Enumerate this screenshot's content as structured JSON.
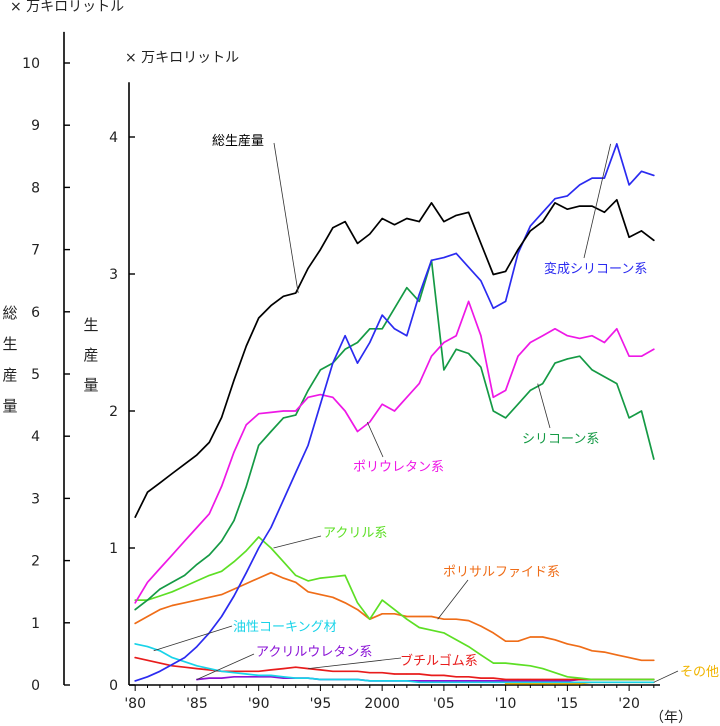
{
  "chart_data": {
    "type": "line",
    "unit_left": "× 万キロリットル",
    "unit_right": "× 万キロリットル",
    "ylabel_left": "総生産量",
    "ylabel_right": "生産量",
    "xlabel": "（年）",
    "x_tick_labels": [
      "'80",
      "'85",
      "'90",
      "'95",
      "2000",
      "'05",
      "'10",
      "'15",
      "'20"
    ],
    "x_ticks": [
      1980,
      1985,
      1990,
      1995,
      2000,
      2005,
      2010,
      2015,
      2020
    ],
    "xlim": [
      1979.5,
      2022.5
    ],
    "ylim_left": [
      0,
      10.5
    ],
    "ylim_right": [
      0,
      4.4
    ],
    "yticks_left": [
      0,
      1,
      2,
      3,
      4,
      5,
      6,
      7,
      8,
      9,
      10
    ],
    "yticks_right": [
      0,
      1,
      2,
      3,
      4
    ],
    "x": [
      1980,
      1981,
      1982,
      1983,
      1984,
      1985,
      1986,
      1987,
      1988,
      1989,
      1990,
      1991,
      1992,
      1993,
      1994,
      1995,
      1996,
      1997,
      1998,
      1999,
      2000,
      2001,
      2002,
      2003,
      2004,
      2005,
      2006,
      2007,
      2008,
      2009,
      2010,
      2011,
      2012,
      2013,
      2014,
      2015,
      2016,
      2017,
      2018,
      2019,
      2020,
      2021,
      2022
    ],
    "series": [
      {
        "name": "総生産量",
        "axis": "left",
        "color": "#000000",
        "label_color": "#000000",
        "values": [
          2.7,
          3.1,
          3.25,
          3.4,
          3.55,
          3.7,
          3.9,
          4.3,
          4.9,
          5.45,
          5.9,
          6.1,
          6.25,
          6.3,
          6.7,
          7.0,
          7.35,
          7.45,
          7.1,
          7.25,
          7.5,
          7.4,
          7.5,
          7.45,
          7.75,
          7.45,
          7.55,
          7.6,
          7.1,
          6.6,
          6.65,
          7.0,
          7.3,
          7.45,
          7.75,
          7.65,
          7.7,
          7.7,
          7.6,
          7.8,
          7.2,
          7.3,
          7.15
        ]
      },
      {
        "name": "変成シリコーン系",
        "axis": "right",
        "color": "#2b2bf0",
        "label_color": "#2b2bf0",
        "values": [
          0.03,
          0.06,
          0.1,
          0.15,
          0.2,
          0.28,
          0.38,
          0.5,
          0.65,
          0.82,
          1.0,
          1.15,
          1.35,
          1.55,
          1.75,
          2.05,
          2.35,
          2.55,
          2.35,
          2.5,
          2.7,
          2.6,
          2.55,
          2.85,
          3.1,
          3.12,
          3.15,
          3.05,
          2.95,
          2.75,
          2.8,
          3.15,
          3.35,
          3.45,
          3.55,
          3.57,
          3.65,
          3.7,
          3.7,
          3.95,
          3.65,
          3.75,
          3.72
        ]
      },
      {
        "name": "ポリウレタン系",
        "axis": "right",
        "color": "#ee18e6",
        "label_color": "#ee18e6",
        "values": [
          0.6,
          0.75,
          0.85,
          0.95,
          1.05,
          1.15,
          1.25,
          1.45,
          1.7,
          1.9,
          1.98,
          1.99,
          2.0,
          2.0,
          2.1,
          2.12,
          2.1,
          2.0,
          1.85,
          1.92,
          2.05,
          2.0,
          2.1,
          2.2,
          2.4,
          2.5,
          2.55,
          2.8,
          2.55,
          2.1,
          2.15,
          2.4,
          2.5,
          2.55,
          2.6,
          2.55,
          2.53,
          2.55,
          2.5,
          2.6,
          2.4,
          2.4,
          2.45
        ]
      },
      {
        "name": "シリコーン系",
        "axis": "right",
        "color": "#159a45",
        "label_color": "#159a45",
        "values": [
          0.55,
          0.62,
          0.7,
          0.75,
          0.8,
          0.88,
          0.95,
          1.05,
          1.2,
          1.45,
          1.75,
          1.85,
          1.95,
          1.97,
          2.15,
          2.3,
          2.35,
          2.45,
          2.5,
          2.6,
          2.6,
          2.75,
          2.9,
          2.8,
          3.1,
          2.3,
          2.45,
          2.42,
          2.32,
          2.0,
          1.95,
          2.05,
          2.15,
          2.2,
          2.35,
          2.38,
          2.4,
          2.3,
          2.25,
          2.2,
          1.95,
          2.0,
          1.65
        ]
      },
      {
        "name": "アクリル系",
        "axis": "right",
        "color": "#5ddf25",
        "label_color": "#5ddf25",
        "values": [
          0.62,
          0.62,
          0.65,
          0.68,
          0.72,
          0.76,
          0.8,
          0.83,
          0.9,
          0.98,
          1.08,
          1.0,
          0.9,
          0.8,
          0.76,
          0.78,
          0.79,
          0.8,
          0.6,
          0.48,
          0.62,
          0.55,
          0.48,
          0.42,
          0.4,
          0.38,
          0.33,
          0.28,
          0.22,
          0.16,
          0.16,
          0.15,
          0.14,
          0.12,
          0.09,
          0.06,
          0.05,
          0.04,
          0.04,
          0.04,
          0.04,
          0.04,
          0.04
        ]
      },
      {
        "name": "ポリサルファイド系",
        "axis": "right",
        "color": "#ef6d18",
        "label_color": "#ef6d18",
        "values": [
          0.45,
          0.5,
          0.55,
          0.58,
          0.6,
          0.62,
          0.64,
          0.66,
          0.7,
          0.74,
          0.78,
          0.82,
          0.78,
          0.75,
          0.68,
          0.66,
          0.64,
          0.6,
          0.55,
          0.48,
          0.52,
          0.52,
          0.5,
          0.5,
          0.5,
          0.48,
          0.48,
          0.47,
          0.43,
          0.38,
          0.32,
          0.32,
          0.35,
          0.35,
          0.33,
          0.3,
          0.28,
          0.25,
          0.24,
          0.22,
          0.2,
          0.18,
          0.18
        ]
      },
      {
        "name": "油性コーキング材",
        "axis": "right",
        "color": "#19d3e8",
        "label_color": "#19d3e8",
        "values": [
          0.3,
          0.28,
          0.25,
          0.2,
          0.17,
          0.14,
          0.12,
          0.1,
          0.09,
          0.08,
          0.07,
          0.07,
          0.06,
          0.05,
          0.05,
          0.04,
          0.04,
          0.04,
          0.04,
          0.03,
          0.03,
          0.03,
          0.03,
          0.02,
          0.02,
          0.02,
          0.02,
          0.02,
          0.02,
          0.02,
          0.02,
          0.02,
          0.02,
          0.02,
          0.02,
          0.02,
          0.02,
          0.02,
          0.02,
          0.02,
          0.02,
          0.02,
          0.02
        ]
      },
      {
        "name": "ブチルゴム系",
        "axis": "right",
        "color": "#e81c1c",
        "label_color": "#e81c1c",
        "values": [
          0.2,
          0.18,
          0.16,
          0.14,
          0.13,
          0.12,
          0.11,
          0.1,
          0.1,
          0.1,
          0.1,
          0.11,
          0.12,
          0.13,
          0.12,
          0.11,
          0.1,
          0.1,
          0.1,
          0.09,
          0.09,
          0.08,
          0.08,
          0.08,
          0.07,
          0.07,
          0.06,
          0.06,
          0.05,
          0.05,
          0.04,
          0.04,
          0.04,
          0.04,
          0.04,
          0.04,
          0.04,
          0.04,
          0.04,
          0.04,
          0.04,
          0.04,
          0.04
        ]
      },
      {
        "name": "アクリルウレタン系",
        "axis": "right",
        "color": "#8a12d6",
        "label_color": "#8a12d6",
        "values": [
          null,
          null,
          null,
          null,
          null,
          0.04,
          0.05,
          0.05,
          0.06,
          0.06,
          0.06,
          0.06,
          0.05,
          0.05,
          0.05,
          0.04,
          0.04,
          0.04,
          0.04,
          0.03,
          0.03,
          0.03,
          0.03,
          0.03,
          0.03,
          0.03,
          0.03,
          0.03,
          0.03,
          0.03,
          0.03,
          0.03,
          0.03,
          0.03,
          0.03,
          0.03,
          0.04,
          0.04,
          0.04,
          0.04,
          0.04,
          0.04,
          0.04
        ]
      },
      {
        "name": "その他",
        "axis": "right",
        "color": "#f0b400",
        "label_color": "#f0b400",
        "values": [
          null,
          null,
          null,
          null,
          null,
          null,
          null,
          null,
          null,
          null,
          null,
          null,
          null,
          null,
          null,
          null,
          null,
          null,
          null,
          null,
          null,
          null,
          null,
          null,
          null,
          null,
          null,
          null,
          null,
          null,
          0.01,
          0.01,
          0.01,
          0.01,
          0.01,
          0.01,
          0.01,
          0.02,
          0.02,
          0.02,
          0.02,
          0.02,
          0.02
        ]
      }
    ]
  }
}
